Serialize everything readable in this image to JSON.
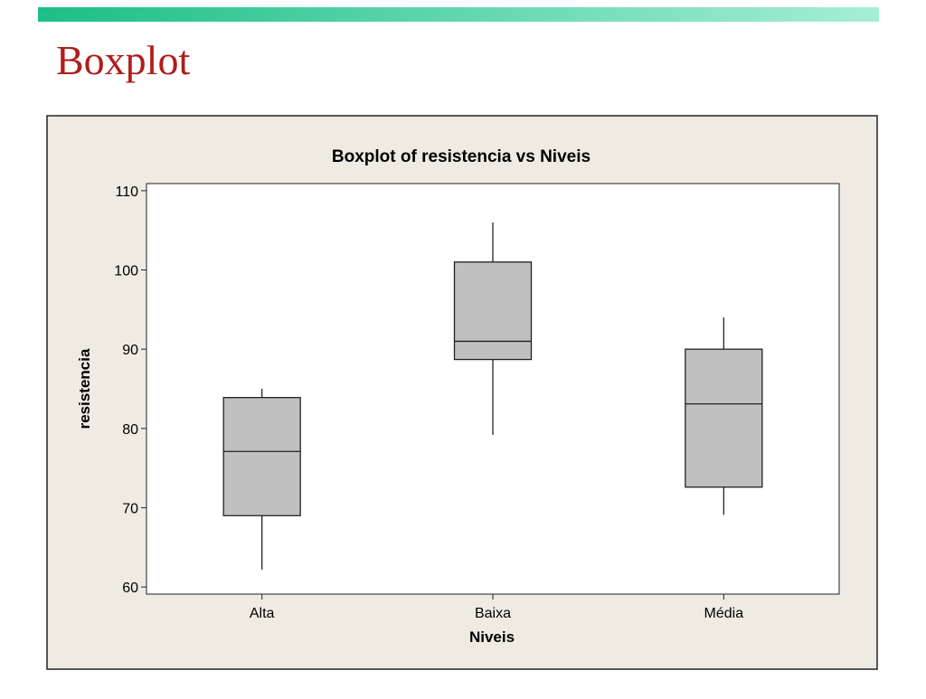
{
  "slide_title": "Boxplot",
  "chart_data": {
    "type": "box",
    "title": "Boxplot of resistencia vs Niveis",
    "x_label": "Niveis",
    "y_label": "resistencia",
    "categories": [
      "Alta",
      "Baixa",
      "Média"
    ],
    "boxes": [
      {
        "whislo": 62.2,
        "q1": 69,
        "med": 77.1,
        "q3": 83.9,
        "whishi": 85
      },
      {
        "whislo": 79.2,
        "q1": 88.7,
        "med": 91,
        "q3": 101,
        "whishi": 106
      },
      {
        "whislo": 69.1,
        "q1": 72.6,
        "med": 83.1,
        "q3": 90,
        "whishi": 94
      }
    ],
    "color": "#c0c0c0",
    "ylim": [
      59.1,
      110.9
    ],
    "yticks": [
      60,
      70,
      80,
      90,
      100,
      110
    ]
  }
}
